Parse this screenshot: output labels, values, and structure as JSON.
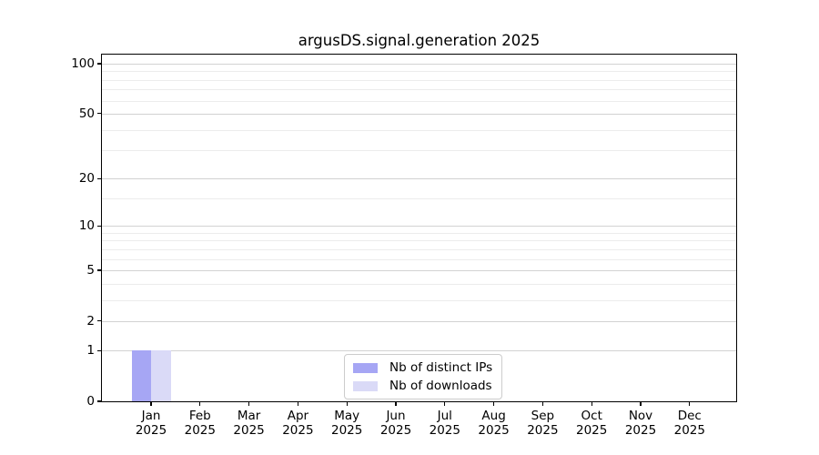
{
  "chart_data": {
    "type": "bar",
    "title": "argusDS.signal.generation 2025",
    "categories": [
      "Jan",
      "Feb",
      "Mar",
      "Apr",
      "May",
      "Jun",
      "Jul",
      "Aug",
      "Sep",
      "Oct",
      "Nov",
      "Dec"
    ],
    "category_year": "2025",
    "series": [
      {
        "name": "Nb of distinct IPs",
        "color": "#a6a6f4",
        "values": [
          1,
          0,
          0,
          0,
          0,
          0,
          0,
          0,
          0,
          0,
          0,
          0
        ]
      },
      {
        "name": "Nb of downloads",
        "color": "#dadaf7",
        "values": [
          1,
          0,
          0,
          0,
          0,
          0,
          0,
          0,
          0,
          0,
          0,
          0
        ]
      }
    ],
    "yscale": "log10(1+v)",
    "ylim": [
      0,
      100
    ],
    "y_major_ticks": [
      0,
      1,
      2,
      5,
      10,
      20,
      50,
      100
    ],
    "y_minor_gridlines": [
      3,
      4,
      6,
      7,
      8,
      9,
      15,
      30,
      40,
      60,
      70,
      80,
      90
    ],
    "grid": "horizontal",
    "legend_position": "bottom-center",
    "colors": {
      "major_grid": "#d2d2d2",
      "minor_grid": "#ececec",
      "spine": "#000000",
      "text": "#000000",
      "background": "#ffffff"
    }
  }
}
